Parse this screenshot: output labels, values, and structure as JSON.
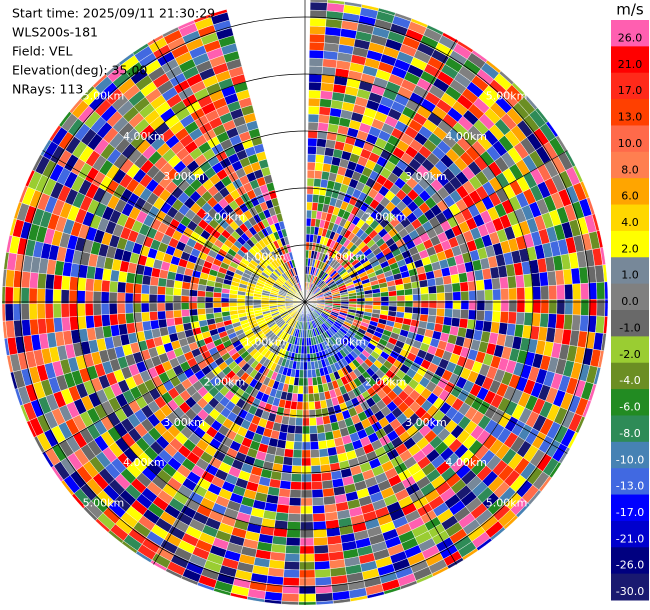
{
  "header": {
    "lines": [
      "Start time: 2025/09/11 21:30:29",
      "WLS200s-181",
      "Field: VEL",
      "Elevation(deg): 35.00",
      "NRays: 113"
    ]
  },
  "rings": {
    "labels": [
      "1.00km",
      "2.00km",
      "3.00km",
      "4.00km",
      "5.00km"
    ]
  },
  "colorbar": {
    "unit": "m/s",
    "ticks": [
      {
        "value": 26,
        "label": "26.0"
      },
      {
        "value": 21,
        "label": "21.0"
      },
      {
        "value": 17,
        "label": "17.0"
      },
      {
        "value": 13,
        "label": "13.0"
      },
      {
        "value": 10,
        "label": "10.0"
      },
      {
        "value": 8,
        "label": "8.0"
      },
      {
        "value": 6,
        "label": "6.0"
      },
      {
        "value": 4,
        "label": "4.0"
      },
      {
        "value": 2,
        "label": "2.0"
      },
      {
        "value": 1,
        "label": "1.0"
      },
      {
        "value": 0,
        "label": "0.0"
      },
      {
        "value": -1,
        "label": "-1.0"
      },
      {
        "value": -2,
        "label": "-2.0"
      },
      {
        "value": -4,
        "label": "-4.0"
      },
      {
        "value": -6,
        "label": "-6.0"
      },
      {
        "value": -8,
        "label": "-8.0"
      },
      {
        "value": -10,
        "label": "-10.0"
      },
      {
        "value": -13,
        "label": "-13.0"
      },
      {
        "value": -17,
        "label": "-17.0"
      },
      {
        "value": -21,
        "label": "-21.0"
      },
      {
        "value": -26,
        "label": "-26.0"
      },
      {
        "value": -30,
        "label": "-30.0"
      }
    ],
    "colors": [
      "#ff5fb0",
      "#ff0000",
      "#ff2a1a",
      "#ff4000",
      "#ff6a4a",
      "#ff7f50",
      "#ffa500",
      "#ffd700",
      "#ffff00",
      "#778899",
      "#808080",
      "#696969",
      "#9acd32",
      "#6b8e23",
      "#228b22",
      "#2e8b57",
      "#4682b4",
      "#4169e1",
      "#0000ff",
      "#0000cd",
      "#000080",
      "#191970"
    ]
  }
}
